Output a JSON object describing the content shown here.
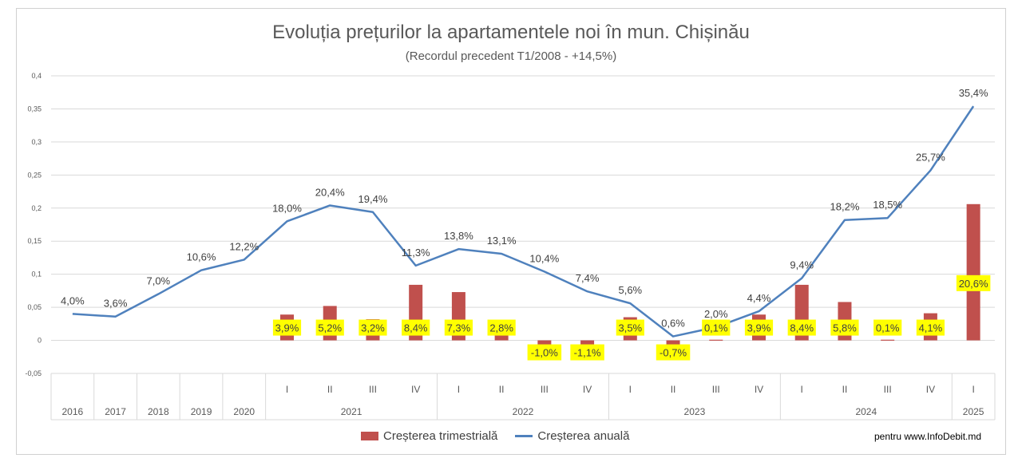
{
  "title": "Evoluția prețurilor la apartamentele noi în mun. Chișinău",
  "subtitle": "(Recordul precedent T1/2008 - +14,5%)",
  "credit": "pentru www.InfoDebit.md",
  "colors": {
    "bar": "#c0504d",
    "line": "#4f81bd",
    "label_bg": "#ffff00"
  },
  "legend": [
    {
      "label": "Creșterea trimestrială",
      "kind": "bar"
    },
    {
      "label": "Creșterea anuală",
      "kind": "line"
    }
  ],
  "chart_data": {
    "type": "bar+line",
    "y_ticks": [
      "-0,05",
      "0",
      "0,05",
      "0,1",
      "0,15",
      "0,2",
      "0,25",
      "0,3",
      "0,35",
      "0,4"
    ],
    "ylim": [
      -0.05,
      0.4
    ],
    "categories": [
      "2016",
      "2017",
      "2018",
      "2019",
      "2020",
      "I",
      "II",
      "III",
      "IV",
      "I",
      "II",
      "III",
      "IV",
      "I",
      "II",
      "III",
      "IV",
      "I",
      "II",
      "III",
      "IV",
      "I"
    ],
    "year_groups": [
      {
        "label": "2016",
        "start": 0,
        "end": 0
      },
      {
        "label": "2017",
        "start": 1,
        "end": 1
      },
      {
        "label": "2018",
        "start": 2,
        "end": 2
      },
      {
        "label": "2019",
        "start": 3,
        "end": 3
      },
      {
        "label": "2020",
        "start": 4,
        "end": 4
      },
      {
        "label": "2021",
        "start": 5,
        "end": 8
      },
      {
        "label": "2022",
        "start": 9,
        "end": 12
      },
      {
        "label": "2023",
        "start": 13,
        "end": 16
      },
      {
        "label": "2024",
        "start": 17,
        "end": 20
      },
      {
        "label": "2025",
        "start": 21,
        "end": 21
      }
    ],
    "series": [
      {
        "name": "Creșterea trimestrială",
        "kind": "bar",
        "values": [
          null,
          null,
          null,
          null,
          null,
          0.039,
          0.052,
          0.032,
          0.084,
          0.073,
          0.028,
          -0.01,
          -0.011,
          0.035,
          -0.007,
          0.001,
          0.039,
          0.084,
          0.058,
          0.001,
          0.041,
          0.206
        ],
        "labels": [
          null,
          null,
          null,
          null,
          null,
          "3,9%",
          "5,2%",
          "3,2%",
          "8,4%",
          "7,3%",
          "2,8%",
          "-1,0%",
          "-1,1%",
          "3,5%",
          "-0,7%",
          "0,1%",
          "3,9%",
          "8,4%",
          "5,8%",
          "0,1%",
          "4,1%",
          "20,6%"
        ]
      },
      {
        "name": "Creșterea anuală",
        "kind": "line",
        "values": [
          0.04,
          0.036,
          0.07,
          0.106,
          0.122,
          0.18,
          0.204,
          0.194,
          0.113,
          0.138,
          0.131,
          0.104,
          0.074,
          0.056,
          0.006,
          0.02,
          0.044,
          0.094,
          0.182,
          0.185,
          0.257,
          0.354
        ],
        "labels": [
          "4,0%",
          "3,6%",
          "7,0%",
          "10,6%",
          "12,2%",
          "18,0%",
          "20,4%",
          "19,4%",
          "11,3%",
          "13,8%",
          "13,1%",
          "10,4%",
          "7,4%",
          "5,6%",
          "0,6%",
          "2,0%",
          "4,4%",
          "9,4%",
          "18,2%",
          "18,5%",
          "25,7%",
          "35,4%"
        ]
      }
    ],
    "grid": true,
    "legend_position": "bottom"
  }
}
